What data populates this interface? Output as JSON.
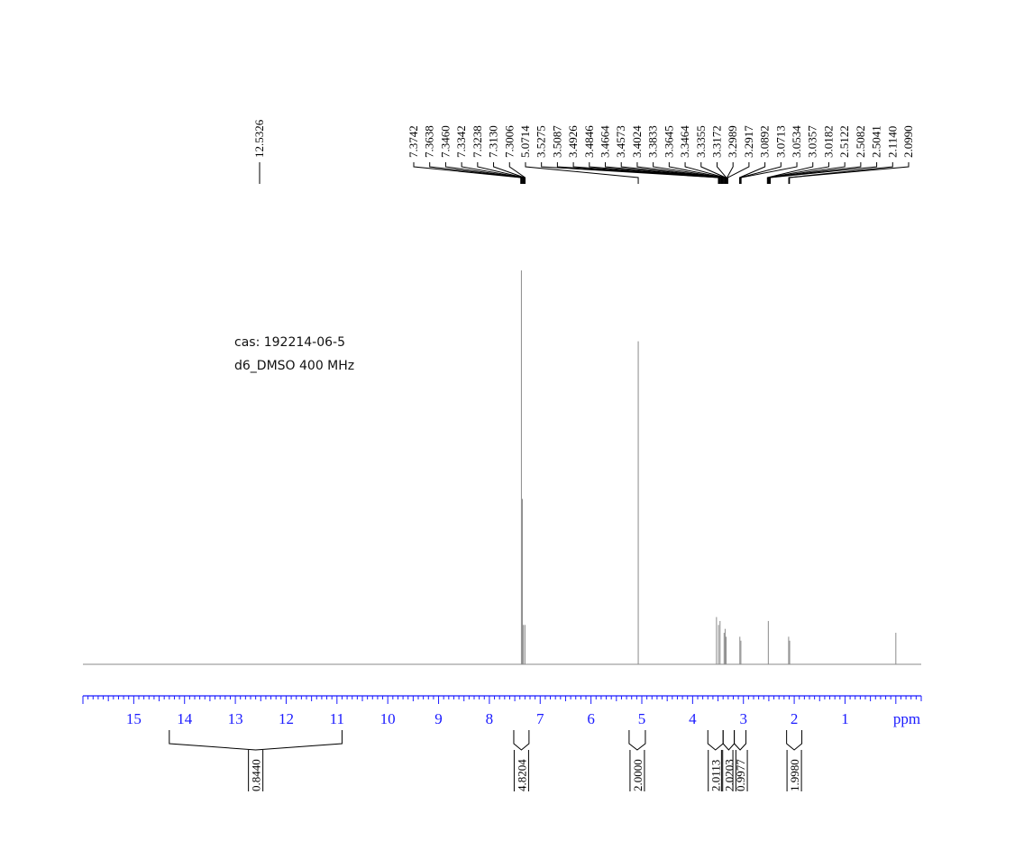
{
  "sample": {
    "cas": "cas:  192214-06-5",
    "solvent_freq": "d6_DMSO  400 MHz"
  },
  "chart_data": {
    "type": "line",
    "xlabel": "ppm",
    "xlim": [
      16.0,
      -0.5
    ],
    "reversed_x": true,
    "x_ticks": [
      "15",
      "14",
      "13",
      "12",
      "11",
      "10",
      "9",
      "8",
      "7",
      "6",
      "5",
      "4",
      "3",
      "2",
      "1"
    ],
    "grid": false,
    "legend": "none",
    "colors": {
      "spectrum": "#8a8a8a",
      "axis": "#1a1aff",
      "labels": "#000000"
    },
    "series": [
      {
        "values": [
          {
            "x": 7.37,
            "y": 1.0
          },
          {
            "x": 7.35,
            "y": 0.42
          },
          {
            "x": 7.33,
            "y": 0.1
          },
          {
            "x": 7.3,
            "y": 0.1
          },
          {
            "x": 5.07,
            "y": 0.82
          },
          {
            "x": 3.53,
            "y": 0.12
          },
          {
            "x": 3.49,
            "y": 0.1
          },
          {
            "x": 3.46,
            "y": 0.11
          },
          {
            "x": 3.38,
            "y": 0.08
          },
          {
            "x": 3.36,
            "y": 0.09
          },
          {
            "x": 3.34,
            "y": 0.07
          },
          {
            "x": 3.07,
            "y": 0.07
          },
          {
            "x": 3.05,
            "y": 0.06
          },
          {
            "x": 2.51,
            "y": 0.11
          },
          {
            "x": 2.11,
            "y": 0.07
          },
          {
            "x": 2.09,
            "y": 0.06
          },
          {
            "x": 0.0,
            "y": 0.08
          }
        ]
      }
    ],
    "peak_groups": [
      {
        "anchor": 12.5,
        "labels": [
          "12.5326"
        ]
      },
      {
        "anchor": 7.34,
        "labels": [
          "7.3742",
          "7.3638",
          "7.3460",
          "7.3342",
          "7.3238",
          "7.3130",
          "7.3006"
        ]
      },
      {
        "anchor": 5.07,
        "labels": [
          "5.0714"
        ]
      },
      {
        "anchor": 3.4,
        "labels": [
          "3.5275",
          "3.5087",
          "3.4926",
          "3.4846",
          "3.4664",
          "3.4573",
          "3.4024",
          "3.3833",
          "3.3645",
          "3.3464",
          "3.3355",
          "3.3172",
          "3.2989",
          "3.2917"
        ]
      },
      {
        "anchor": 3.06,
        "labels": [
          "3.0892",
          "3.0713",
          "3.0534"
        ]
      },
      {
        "anchor": 2.5,
        "labels": [
          "3.0357",
          "3.0182",
          "2.5122",
          "2.5082",
          "2.5041"
        ]
      },
      {
        "anchor": 2.1,
        "labels": [
          "2.1140",
          "2.0990"
        ]
      }
    ],
    "integrals": [
      {
        "from": 14.3,
        "to": 10.9,
        "value": "0.8440"
      },
      {
        "from": 7.52,
        "to": 7.22,
        "value": "4.8204"
      },
      {
        "from": 5.25,
        "to": 4.93,
        "value": "2.0000"
      },
      {
        "from": 3.7,
        "to": 3.4,
        "value": "2.0113"
      },
      {
        "from": 3.4,
        "to": 3.18,
        "value": "2.0203"
      },
      {
        "from": 3.18,
        "to": 2.95,
        "value": "0.9977"
      },
      {
        "from": 2.15,
        "to": 1.85,
        "value": "1.9980"
      }
    ]
  }
}
